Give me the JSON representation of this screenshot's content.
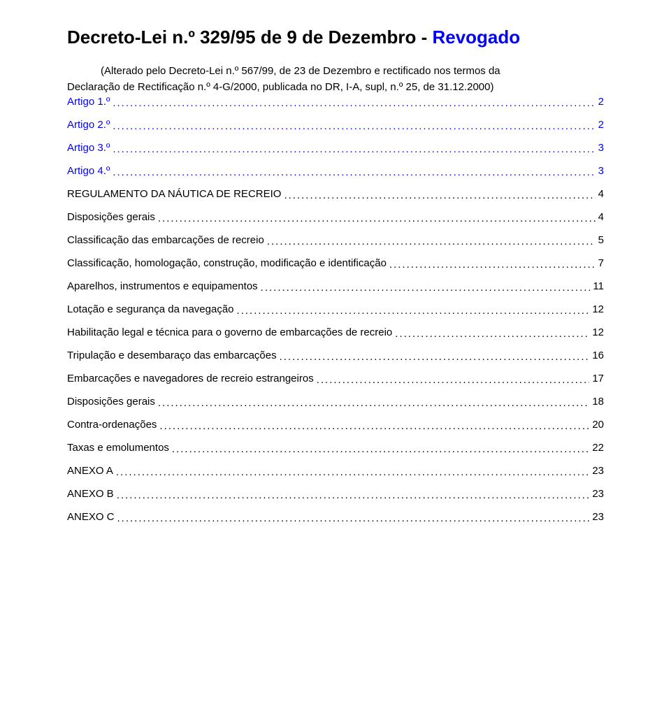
{
  "title": {
    "main": "Decreto-Lei n.º 329/95 de 9 de Dezembro - ",
    "revogado": "Revogado"
  },
  "subtitle": {
    "line1": "(Alterado pelo Decreto-Lei n.º 567/99, de 23 de Dezembro e rectificado nos termos da",
    "line2": "Declaração de Rectificação n.º 4-G/2000, publicada no DR, I-A, supl, n.º 25, de 31.12.2000)"
  },
  "toc": [
    {
      "label": "Artigo 1.º",
      "page": "2",
      "artigo": true
    },
    {
      "label": "Artigo 2.º",
      "page": "2",
      "artigo": true
    },
    {
      "label": "Artigo 3.º",
      "page": "3",
      "artigo": true
    },
    {
      "label": "Artigo 4.º",
      "page": "3",
      "artigo": true
    },
    {
      "label": "REGULAMENTO DA NÁUTICA DE RECREIO",
      "page": "4",
      "artigo": false
    },
    {
      "label": "Disposições gerais",
      "page": "4",
      "artigo": false
    },
    {
      "label": "Classificação das embarcações de recreio",
      "page": "5",
      "artigo": false
    },
    {
      "label": "Classificação, homologação, construção, modificação e identificação",
      "page": "7",
      "artigo": false
    },
    {
      "label": "Aparelhos, instrumentos e equipamentos",
      "page": "11",
      "artigo": false
    },
    {
      "label": "Lotação e segurança da navegação",
      "page": "12",
      "artigo": false
    },
    {
      "label": "Habilitação legal e técnica para o governo de embarcações de recreio",
      "page": "12",
      "artigo": false
    },
    {
      "label": "Tripulação e desembaraço das embarcações",
      "page": "16",
      "artigo": false
    },
    {
      "label": "Embarcações e navegadores de recreio estrangeiros",
      "page": "17",
      "artigo": false
    },
    {
      "label": "Disposições gerais",
      "page": "18",
      "artigo": false
    },
    {
      "label": "Contra-ordenações",
      "page": "20",
      "artigo": false
    },
    {
      "label": "Taxas e emolumentos",
      "page": "22",
      "artigo": false
    },
    {
      "label": "ANEXO A",
      "page": "23",
      "artigo": false
    },
    {
      "label": "ANEXO B",
      "page": "23",
      "artigo": false
    },
    {
      "label": "ANEXO C",
      "page": "23",
      "artigo": false
    }
  ]
}
